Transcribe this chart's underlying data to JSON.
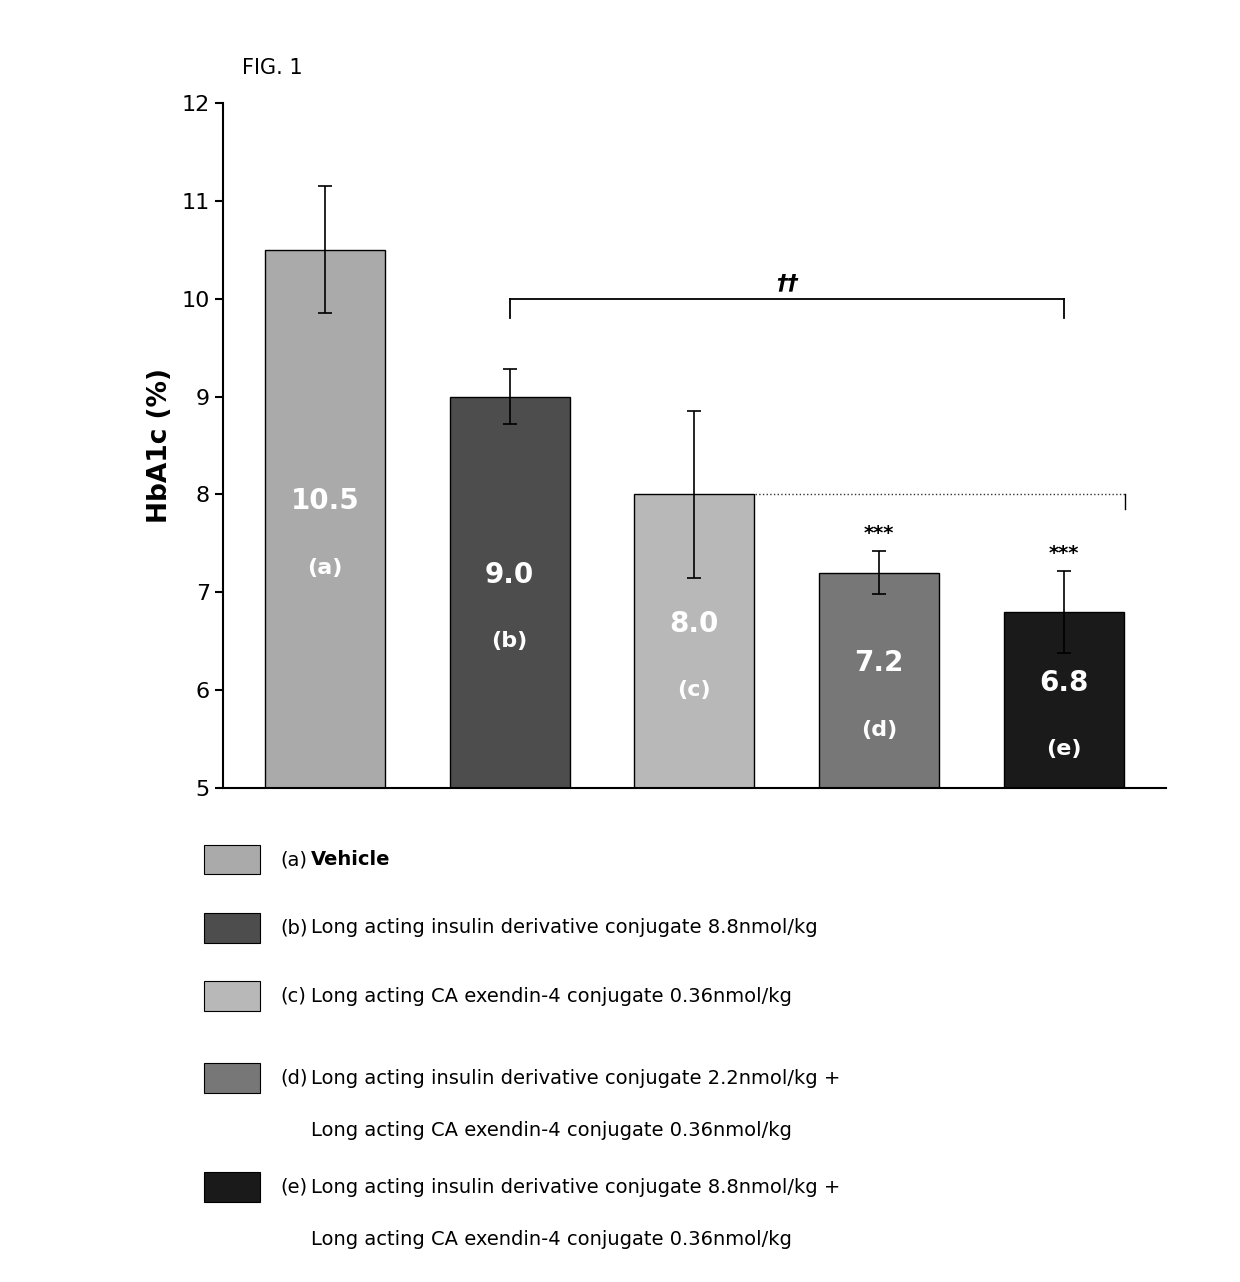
{
  "categories": [
    "a",
    "b",
    "c",
    "d",
    "e"
  ],
  "values": [
    10.5,
    9.0,
    8.0,
    7.2,
    6.8
  ],
  "errors": [
    0.65,
    0.28,
    0.85,
    0.22,
    0.42
  ],
  "bar_colors": [
    "#aaaaaa",
    "#4d4d4d",
    "#b8b8b8",
    "#777777",
    "#1a1a1a"
  ],
  "ylabel": "HbA1c (%)",
  "ylim": [
    5,
    12
  ],
  "yticks": [
    5,
    6,
    7,
    8,
    9,
    10,
    11,
    12
  ],
  "fig_title": "FIG. 1",
  "legend_colors": [
    "#aaaaaa",
    "#4d4d4d",
    "#b8b8b8",
    "#777777",
    "#1a1a1a"
  ],
  "significance_text": "††",
  "star_text": "***",
  "bar_value_labels": [
    "10.5",
    "9.0",
    "8.0",
    "7.2",
    "6.8"
  ],
  "bar_letter_labels": [
    "(a)",
    "(b)",
    "(c)",
    "(d)",
    "(e)"
  ]
}
